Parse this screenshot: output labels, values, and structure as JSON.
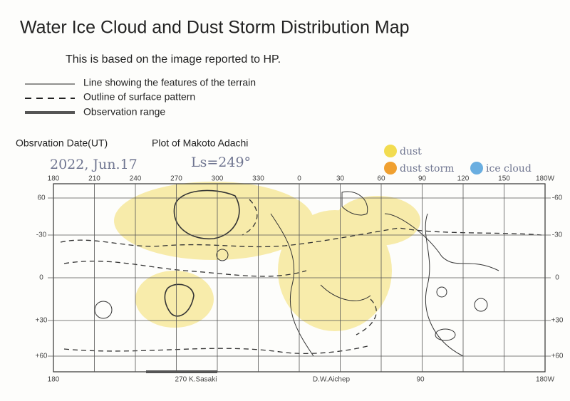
{
  "header": {
    "title": "Water Ice Cloud and Dust Storm Distribution Map",
    "subtitle": "This is based on the image reported to HP."
  },
  "legend": [
    "Line showing the features of the terrain",
    "Outline of surface pattern",
    "Observation range"
  ],
  "info": {
    "date_label": "Obsrvation Date(UT)",
    "plot_by": "Plot of Makoto Adachi",
    "date": "2022, Jun.17",
    "ls": "Ls=249°"
  },
  "key": [
    "dust",
    "dust storm",
    "ice cloud"
  ],
  "map": {
    "top_labels": [
      "180",
      "210",
      "240",
      "270",
      "300",
      "330",
      "0",
      "30",
      "60",
      "90",
      "120",
      "150",
      "180W"
    ],
    "left_labels": [
      "60",
      "-30",
      "0",
      "+30",
      "+60"
    ],
    "right_labels": [
      "-60",
      "-30",
      "0",
      "+30",
      "+60"
    ],
    "bottom_labels": [
      "180",
      "270 K.Sasaki",
      "D.W.Aichep",
      "90",
      "180W"
    ]
  }
}
